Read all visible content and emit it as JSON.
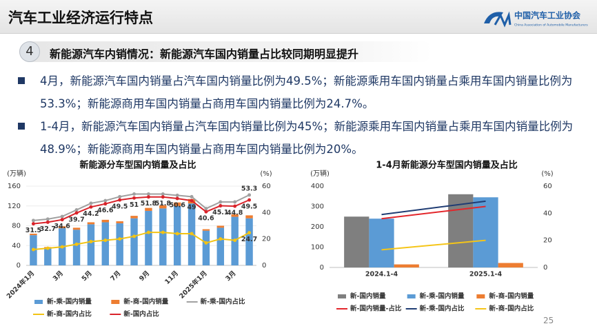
{
  "header": {
    "title": "汽车工业经济运行特点",
    "logo_text": "中国汽车工业协会",
    "logo_subtext": "China Association of Automobile Manufacturers"
  },
  "section": {
    "number": 4,
    "title": "新能源汽车内销情况：新能源汽车国内销量占比较同期明显提升"
  },
  "bullets": [
    "4月，新能源汽车国内销量占汽车国内销量比例为49.5%；新能源乘用车国内销量占乘用车国内销量比例为53.3%；新能源商用车国内销量占商用车国内销量比例为24.7%。",
    "1-4月，新能源汽车国内销量占汽车国内销量比例为45%；新能源乘用车国内销量占乘用车国内销量比例为48.9%；新能源商用车国内销量占商用车国内销量比例为20%。"
  ],
  "page_number": 25,
  "chart_data": [
    {
      "type": "combo",
      "title": "新能源分车型国内销量及占比",
      "y_unit": "(万辆)",
      "y2_unit": "(%)",
      "categories": [
        "2024年1月",
        null,
        "3月",
        null,
        "5月",
        null,
        "7月",
        null,
        "9月",
        null,
        "11月",
        null,
        "2025年1月",
        null,
        "3月",
        null
      ],
      "ylim": [
        0,
        160
      ],
      "yticks": [
        0,
        40,
        80,
        120,
        160
      ],
      "y2lim": [
        0,
        60
      ],
      "y2ticks": [
        0,
        20,
        40,
        60
      ],
      "grid": true,
      "bar_mode": "stacked",
      "legend": "bottom",
      "series": [
        {
          "name": "新-乘-国内销量",
          "type": "bar",
          "color": "#5b9bd5",
          "values": [
            61,
            35,
            75,
            72,
            83,
            87,
            85,
            95,
            110,
            115,
            120,
            125,
            70,
            76,
            98,
            95
          ]
        },
        {
          "name": "新-商-国内销量",
          "type": "bar",
          "color": "#ed7d31",
          "values": [
            3,
            2,
            4,
            4,
            4,
            5,
            4,
            5,
            6,
            6,
            7,
            9,
            3,
            4,
            5,
            6
          ]
        },
        {
          "name": "新-乘-国内占比",
          "type": "line",
          "axis": "y2",
          "color": "#a0a0a0",
          "markers": true,
          "data_labels": "last",
          "label_position": "above",
          "values": [
            34,
            35,
            37,
            42,
            47,
            49,
            52,
            54,
            54,
            54,
            53,
            52,
            43,
            48,
            48,
            53.3
          ]
        },
        {
          "name": "新-商-国内占比",
          "type": "line",
          "axis": "y2",
          "color": "#f2c314",
          "markers": true,
          "data_labels": "last",
          "label_position": "below",
          "values": [
            12,
            13,
            14,
            16,
            18,
            19,
            20,
            22,
            25,
            25,
            24,
            24,
            17,
            20,
            19,
            24.7
          ]
        },
        {
          "name": "新-国内占比",
          "type": "line",
          "axis": "y2",
          "color": "#d9232a",
          "markers": true,
          "data_labels": "all",
          "label_position": "below",
          "values": [
            31.5,
            32.7,
            34.6,
            39.7,
            44.2,
            46.6,
            49.5,
            51,
            51.8,
            51.8,
            50.6,
            49,
            40.6,
            45.1,
            44.8,
            49.5
          ]
        }
      ]
    },
    {
      "type": "combo",
      "title": "1-4月新能源分车型国内销量及占比",
      "y_unit": "(万辆)",
      "y2_unit": "(%)",
      "categories": [
        "2024.1-4",
        "2025.1-4"
      ],
      "ylim": [
        0,
        400
      ],
      "yticks": [
        0,
        100,
        200,
        300,
        400
      ],
      "y2lim": [
        0,
        60
      ],
      "y2ticks": [
        0,
        20,
        40,
        60
      ],
      "grid": false,
      "bar_mode": "grouped",
      "legend": "bottom",
      "series": [
        {
          "name": "新-国内销量",
          "type": "bar",
          "color": "#7f7f7f",
          "values": [
            250,
            360
          ]
        },
        {
          "name": "新-乘-国内销量",
          "type": "bar",
          "color": "#5b9bd5",
          "values": [
            240,
            345
          ]
        },
        {
          "name": "新-商-国内销量",
          "type": "bar",
          "color": "#ed7d31",
          "values": [
            15,
            22
          ]
        },
        {
          "name": "新-国内销量-占比",
          "type": "line",
          "axis": "y2",
          "color": "#e3262b",
          "values": [
            36,
            45
          ]
        },
        {
          "name": "新-乘-国内占比",
          "type": "line",
          "axis": "y2",
          "color": "#1f3c73",
          "values": [
            39,
            48.9
          ]
        },
        {
          "name": "新-商-国内占比",
          "type": "line",
          "axis": "y2",
          "color": "#f5c518",
          "values": [
            13,
            20
          ]
        }
      ]
    }
  ]
}
